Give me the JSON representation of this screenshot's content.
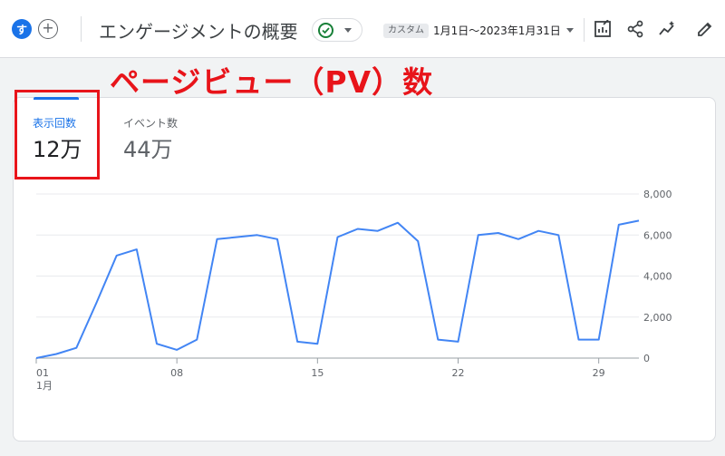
{
  "header": {
    "avatar_letter": "す",
    "title": "エンゲージメントの概要",
    "range_chip": "カスタム",
    "range_text": "1月1日～2023年1月31日"
  },
  "annotation": "ページビュー（PV）数",
  "tabs": [
    {
      "label": "表示回数",
      "value": "12万",
      "active": true
    },
    {
      "label": "イベント数",
      "value": "44万",
      "active": false
    }
  ],
  "colors": {
    "accent": "#1a73e8",
    "annotation": "#e8141a",
    "status_ok": "#188038"
  },
  "icons": [
    "add-icon",
    "check-circle-icon",
    "chart-edit-icon",
    "share-icon",
    "insights-icon",
    "edit-icon"
  ],
  "chart_data": {
    "type": "line",
    "x": [
      "1/1",
      "1/2",
      "1/3",
      "1/4",
      "1/5",
      "1/6",
      "1/7",
      "1/8",
      "1/9",
      "1/10",
      "1/11",
      "1/12",
      "1/13",
      "1/14",
      "1/15",
      "1/16",
      "1/17",
      "1/18",
      "1/19",
      "1/20",
      "1/21",
      "1/22",
      "1/23",
      "1/24",
      "1/25",
      "1/26",
      "1/27",
      "1/28",
      "1/29",
      "1/30",
      "1/31"
    ],
    "x_tick_labels": [
      "01",
      "08",
      "15",
      "22",
      "29"
    ],
    "x_tick_index": [
      0,
      7,
      14,
      21,
      28
    ],
    "x_sublabel": "1月",
    "series": [
      {
        "values": [
          0,
          200,
          500,
          2700,
          5000,
          5300,
          700,
          400,
          900,
          5800,
          5900,
          6000,
          5800,
          800,
          700,
          5900,
          6300,
          6200,
          6600,
          5700,
          900,
          800,
          6000,
          6100,
          5800,
          6200,
          6000,
          900,
          900,
          6500,
          6700
        ]
      }
    ],
    "ylim": [
      0,
      8000
    ],
    "y_ticks": [
      0,
      2000,
      4000,
      6000,
      8000
    ],
    "y_tick_labels": [
      "0",
      "2,000",
      "4,000",
      "6,000",
      "8,000"
    ],
    "y_axis_position": "right",
    "grid": true,
    "line_color": "#4285f4"
  }
}
